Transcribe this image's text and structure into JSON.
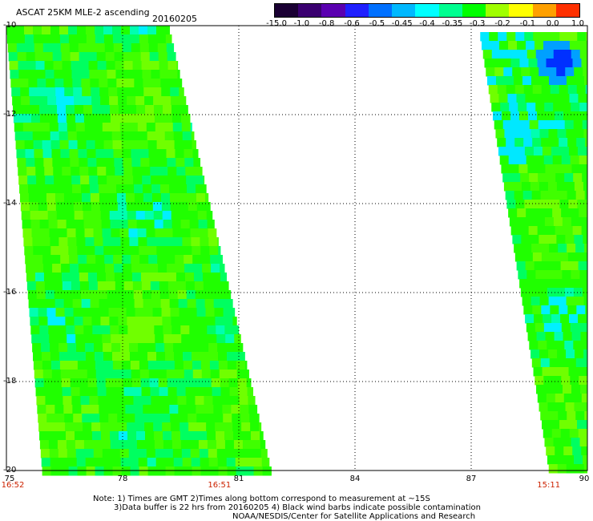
{
  "header": {
    "title": "ASCAT 25KM MLE-2 ascending",
    "date": "20160205"
  },
  "colorbar": {
    "labels": [
      "-15.0",
      "-1.0",
      "-0.8",
      "-0.6",
      "-0.5",
      "-0.45",
      "-0.4",
      "-0.35",
      "-0.3",
      "-0.2",
      "-0.1",
      "0.0",
      "1.0"
    ],
    "colors": [
      "#1a0033",
      "#3a0070",
      "#5a00b0",
      "#2020ff",
      "#0070ff",
      "#00b8ff",
      "#00ffff",
      "#00ff90",
      "#00ff00",
      "#a0ff00",
      "#ffff00",
      "#ffa000",
      "#ff3000"
    ]
  },
  "map": {
    "lon_range": [
      75,
      90
    ],
    "lat_range": [
      -20,
      -10
    ],
    "lon_ticks": [
      "75",
      "78",
      "81",
      "84",
      "87",
      "90"
    ],
    "lat_ticks": [
      "-10",
      "-12",
      "-14",
      "-16",
      "-18",
      "-20"
    ],
    "pass_times": [
      {
        "lon": 75,
        "label": "16:52"
      },
      {
        "lon": 80.5,
        "label": "16:51"
      },
      {
        "lon": 89,
        "label": "15:11"
      }
    ],
    "grid": "dotted"
  },
  "notes": {
    "line1": "Note: 1) Times are GMT 2)Times along bottom correspond to measurement at ~15S",
    "line2": "3)Data buffer is 22 hrs from 20160205 4) Black wind barbs indicate possible contamination",
    "line3": "NOAA/NESDIS/Center for Satellite Applications and Research"
  }
}
